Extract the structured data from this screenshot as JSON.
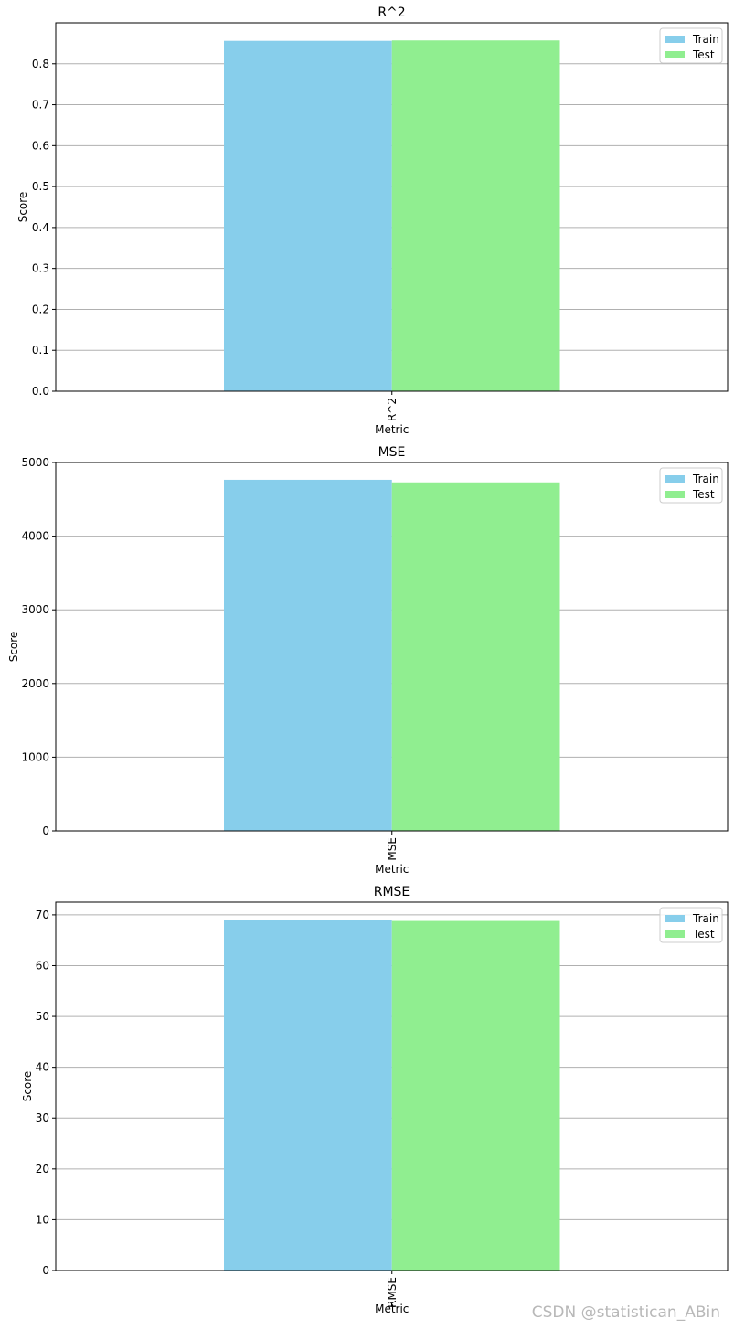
{
  "chart_data": [
    {
      "type": "bar",
      "title": "R^2",
      "xlabel": "Metric",
      "ylabel": "Score",
      "categories": [
        "R^2"
      ],
      "series": [
        {
          "name": "Train",
          "values": [
            0.856
          ],
          "color": "#87ceeb"
        },
        {
          "name": "Test",
          "values": [
            0.857
          ],
          "color": "#90ee90"
        }
      ],
      "ylim": [
        0,
        0.9
      ],
      "yticks": [
        0.0,
        0.1,
        0.2,
        0.3,
        0.4,
        0.5,
        0.6,
        0.7,
        0.8
      ],
      "ytick_labels": [
        "0.0",
        "0.1",
        "0.2",
        "0.3",
        "0.4",
        "0.5",
        "0.6",
        "0.7",
        "0.8"
      ],
      "grid": "y",
      "legend": "top-right"
    },
    {
      "type": "bar",
      "title": "MSE",
      "xlabel": "Metric",
      "ylabel": "Score",
      "categories": [
        "MSE"
      ],
      "series": [
        {
          "name": "Train",
          "values": [
            4765
          ],
          "color": "#87ceeb"
        },
        {
          "name": "Test",
          "values": [
            4730
          ],
          "color": "#90ee90"
        }
      ],
      "ylim": [
        0,
        5000
      ],
      "yticks": [
        0,
        1000,
        2000,
        3000,
        4000,
        5000
      ],
      "ytick_labels": [
        "0",
        "1000",
        "2000",
        "3000",
        "4000",
        "5000"
      ],
      "grid": "y",
      "legend": "top-right"
    },
    {
      "type": "bar",
      "title": "RMSE",
      "xlabel": "Metric",
      "ylabel": "Score",
      "categories": [
        "RMSE"
      ],
      "series": [
        {
          "name": "Train",
          "values": [
            69.0
          ],
          "color": "#87ceeb"
        },
        {
          "name": "Test",
          "values": [
            68.8
          ],
          "color": "#90ee90"
        }
      ],
      "ylim": [
        0,
        72.5
      ],
      "yticks": [
        0,
        10,
        20,
        30,
        40,
        50,
        60,
        70
      ],
      "ytick_labels": [
        "0",
        "10",
        "20",
        "30",
        "40",
        "50",
        "60",
        "70"
      ],
      "grid": "y",
      "legend": "top-right"
    }
  ],
  "watermark": "CSDN @statistican_ABin"
}
